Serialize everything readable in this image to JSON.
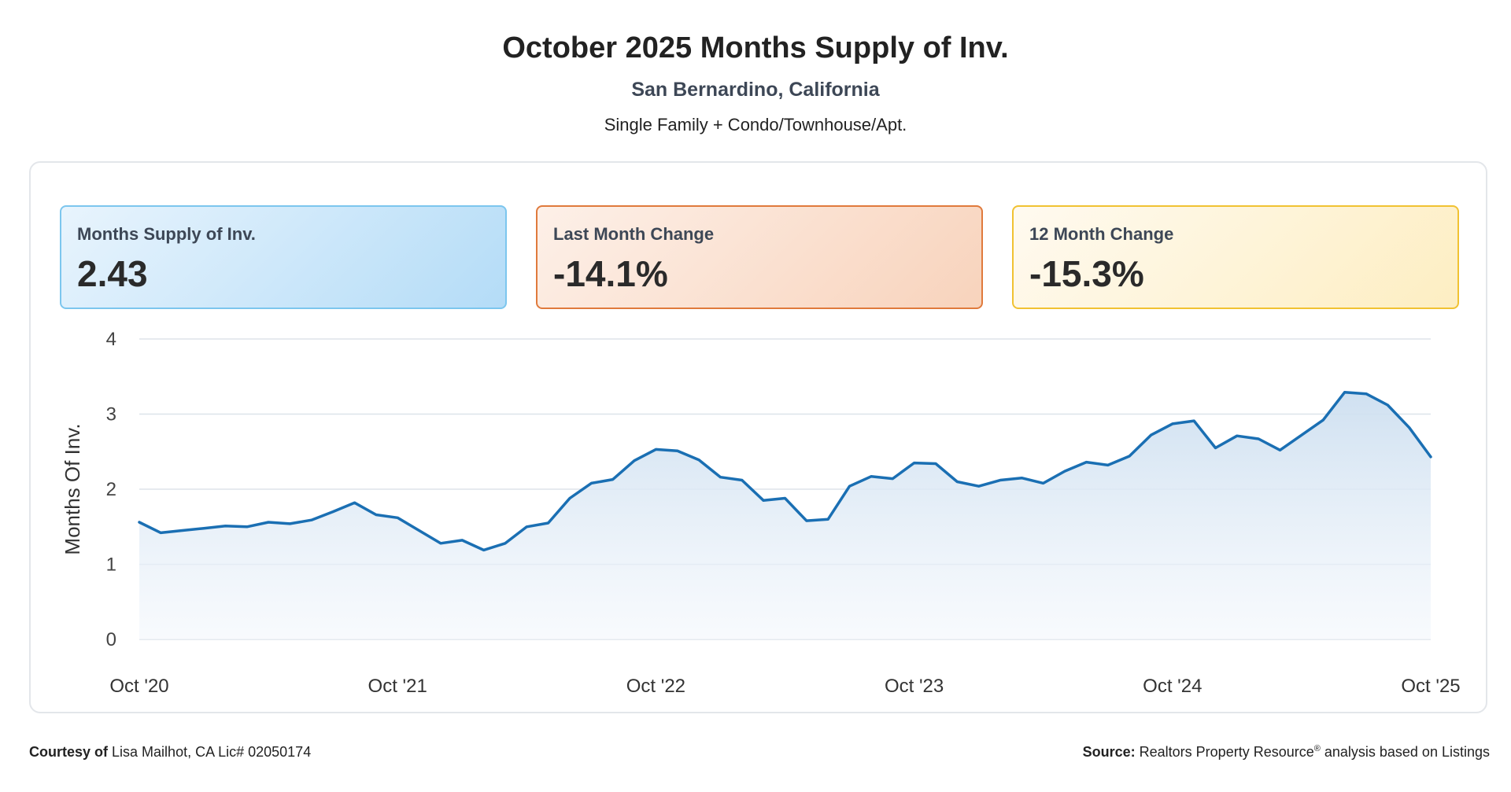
{
  "header": {
    "title": "October 2025 Months Supply of Inv.",
    "subtitle": "San Bernardino, California",
    "property_type": "Single Family + Condo/Townhouse/Apt."
  },
  "stats": [
    {
      "label": "Months Supply of Inv.",
      "value": "2.43",
      "color": "#7cc6ee"
    },
    {
      "label": "Last Month Change",
      "value": "-14.1%",
      "color": "#e07a3c"
    },
    {
      "label": "12 Month Change",
      "value": "-15.3%",
      "color": "#f1c232"
    }
  ],
  "footer": {
    "courtesy_prefix": "Courtesy of",
    "courtesy_text": "Lisa Mailhot, CA Lic# 02050174",
    "source_prefix": "Source:",
    "source_name": "Realtors Property Resource",
    "source_mark": "®",
    "source_suffix": "analysis based on Listings"
  },
  "chart_data": {
    "type": "area",
    "title": "",
    "ylabel": "Months Of Inv.",
    "xlabel": "",
    "ylim": [
      0,
      4
    ],
    "yticks": [
      0,
      1,
      2,
      3,
      4
    ],
    "grid": true,
    "line_color": "#1a6fb3",
    "fill_color": "#dbe8f5",
    "x_tick_labels": [
      "Oct '20",
      "Oct '21",
      "Oct '22",
      "Oct '23",
      "Oct '24",
      "Oct '25"
    ],
    "x_tick_index": [
      0,
      12,
      24,
      36,
      48,
      60
    ],
    "values": [
      1.56,
      1.42,
      1.45,
      1.48,
      1.51,
      1.5,
      1.56,
      1.54,
      1.59,
      1.7,
      1.82,
      1.66,
      1.62,
      1.45,
      1.28,
      1.32,
      1.19,
      1.28,
      1.5,
      1.55,
      1.88,
      2.08,
      2.13,
      2.38,
      2.53,
      2.51,
      2.39,
      2.16,
      2.12,
      1.85,
      1.88,
      1.58,
      1.6,
      2.04,
      2.17,
      2.14,
      2.35,
      2.34,
      2.1,
      2.04,
      2.12,
      2.15,
      2.08,
      2.24,
      2.36,
      2.32,
      2.44,
      2.72,
      2.87,
      2.91,
      2.55,
      2.71,
      2.67,
      2.52,
      2.72,
      2.92,
      3.29,
      3.27,
      3.12,
      2.82,
      2.43
    ]
  }
}
